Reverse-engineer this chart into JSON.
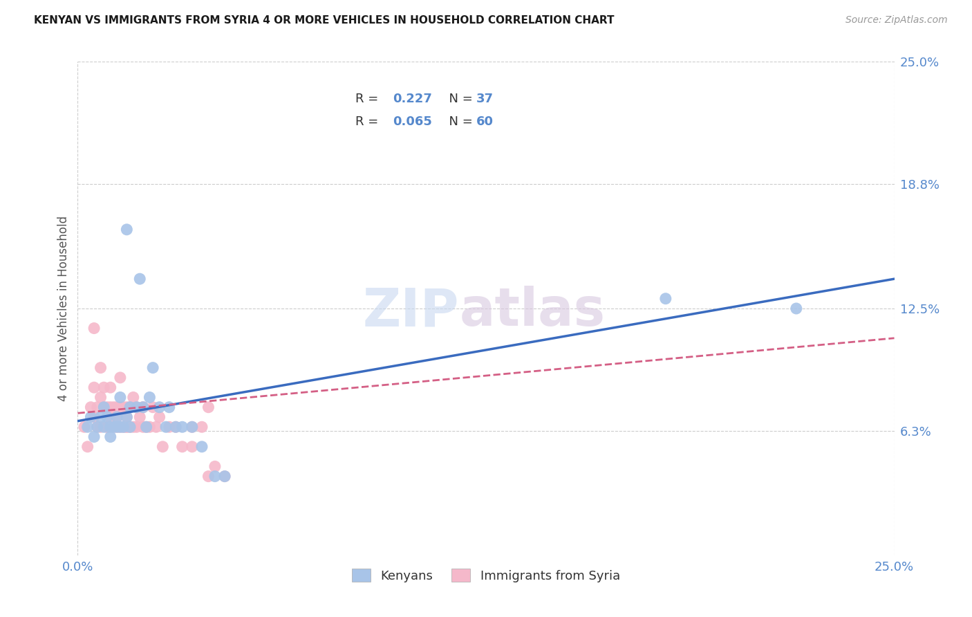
{
  "title": "KENYAN VS IMMIGRANTS FROM SYRIA 4 OR MORE VEHICLES IN HOUSEHOLD CORRELATION CHART",
  "source": "Source: ZipAtlas.com",
  "ylabel_label": "4 or more Vehicles in Household",
  "legend_entry1": "Kenyans",
  "legend_entry2": "Immigrants from Syria",
  "watermark_zip": "ZIP",
  "watermark_atlas": "atlas",
  "xmin": 0.0,
  "xmax": 0.25,
  "ymin": 0.0,
  "ymax": 0.25,
  "ytick_vals": [
    0.063,
    0.125,
    0.188,
    0.25
  ],
  "ytick_labels": [
    "6.3%",
    "12.5%",
    "18.8%",
    "25.0%"
  ],
  "xtick_vals": [
    0.0,
    0.25
  ],
  "xtick_labels": [
    "0.0%",
    "25.0%"
  ],
  "blue_scatter_color": "#a8c4e8",
  "pink_scatter_color": "#f5b8ca",
  "blue_line_color": "#3a6bbf",
  "pink_line_color": "#d45f85",
  "tick_color": "#5588cc",
  "grid_color": "#cccccc",
  "r1": "0.227",
  "n1": "37",
  "r2": "0.065",
  "n2": "60",
  "kenyans_x": [
    0.003,
    0.004,
    0.005,
    0.006,
    0.007,
    0.008,
    0.008,
    0.009,
    0.01,
    0.01,
    0.011,
    0.012,
    0.012,
    0.013,
    0.013,
    0.014,
    0.015,
    0.015,
    0.016,
    0.016,
    0.018,
    0.019,
    0.02,
    0.021,
    0.022,
    0.023,
    0.025,
    0.027,
    0.028,
    0.03,
    0.032,
    0.035,
    0.038,
    0.042,
    0.045,
    0.22,
    0.18
  ],
  "kenyans_y": [
    0.065,
    0.07,
    0.06,
    0.065,
    0.07,
    0.075,
    0.065,
    0.07,
    0.06,
    0.065,
    0.065,
    0.07,
    0.065,
    0.08,
    0.065,
    0.065,
    0.165,
    0.07,
    0.075,
    0.065,
    0.075,
    0.14,
    0.075,
    0.065,
    0.08,
    0.095,
    0.075,
    0.065,
    0.075,
    0.065,
    0.065,
    0.065,
    0.055,
    0.04,
    0.04,
    0.125,
    0.13
  ],
  "syria_x": [
    0.002,
    0.003,
    0.004,
    0.005,
    0.005,
    0.006,
    0.006,
    0.007,
    0.007,
    0.008,
    0.008,
    0.009,
    0.009,
    0.01,
    0.01,
    0.01,
    0.011,
    0.011,
    0.012,
    0.012,
    0.013,
    0.013,
    0.013,
    0.014,
    0.014,
    0.015,
    0.015,
    0.015,
    0.016,
    0.016,
    0.017,
    0.017,
    0.018,
    0.018,
    0.019,
    0.02,
    0.02,
    0.021,
    0.022,
    0.023,
    0.025,
    0.026,
    0.028,
    0.03,
    0.032,
    0.035,
    0.038,
    0.04,
    0.042,
    0.045,
    0.005,
    0.007,
    0.009,
    0.012,
    0.015,
    0.018,
    0.02,
    0.024,
    0.035,
    0.04
  ],
  "syria_y": [
    0.065,
    0.055,
    0.075,
    0.07,
    0.085,
    0.065,
    0.075,
    0.08,
    0.065,
    0.075,
    0.085,
    0.065,
    0.075,
    0.07,
    0.075,
    0.085,
    0.065,
    0.075,
    0.07,
    0.065,
    0.09,
    0.075,
    0.065,
    0.075,
    0.065,
    0.07,
    0.075,
    0.065,
    0.075,
    0.065,
    0.08,
    0.065,
    0.075,
    0.065,
    0.07,
    0.065,
    0.075,
    0.065,
    0.065,
    0.075,
    0.07,
    0.055,
    0.065,
    0.065,
    0.055,
    0.065,
    0.065,
    0.075,
    0.045,
    0.04,
    0.115,
    0.095,
    0.065,
    0.075,
    0.065,
    0.075,
    0.075,
    0.065,
    0.055,
    0.04
  ]
}
